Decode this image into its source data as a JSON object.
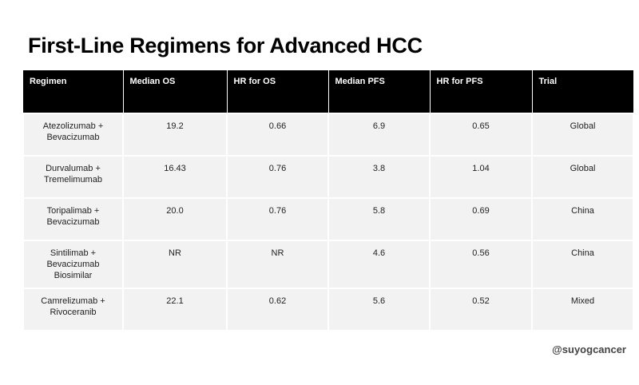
{
  "title": "First-Line Regimens for Advanced HCC",
  "table": {
    "header": [
      "Regimen",
      "Median OS",
      "HR for OS",
      "Median PFS",
      "HR for PFS",
      "Trial"
    ],
    "rows": [
      [
        "Atezolizumab + Bevacizumab",
        "19.2",
        "0.66",
        "6.9",
        "0.65",
        "Global"
      ],
      [
        "Durvalumab + Tremelimumab",
        "16.43",
        "0.76",
        "3.8",
        "1.04",
        "Global"
      ],
      [
        "Toripalimab + Bevacizumab",
        "20.0",
        "0.76",
        "5.8",
        "0.69",
        "China"
      ],
      [
        "Sintilimab + Bevacizumab Biosimilar",
        "NR",
        "NR",
        "4.6",
        "0.56",
        "China"
      ],
      [
        "Camrelizumab + Rivoceranib",
        "22.1",
        "0.62",
        "5.6",
        "0.52",
        "Mixed"
      ]
    ]
  },
  "footer": "@suyogcancer"
}
